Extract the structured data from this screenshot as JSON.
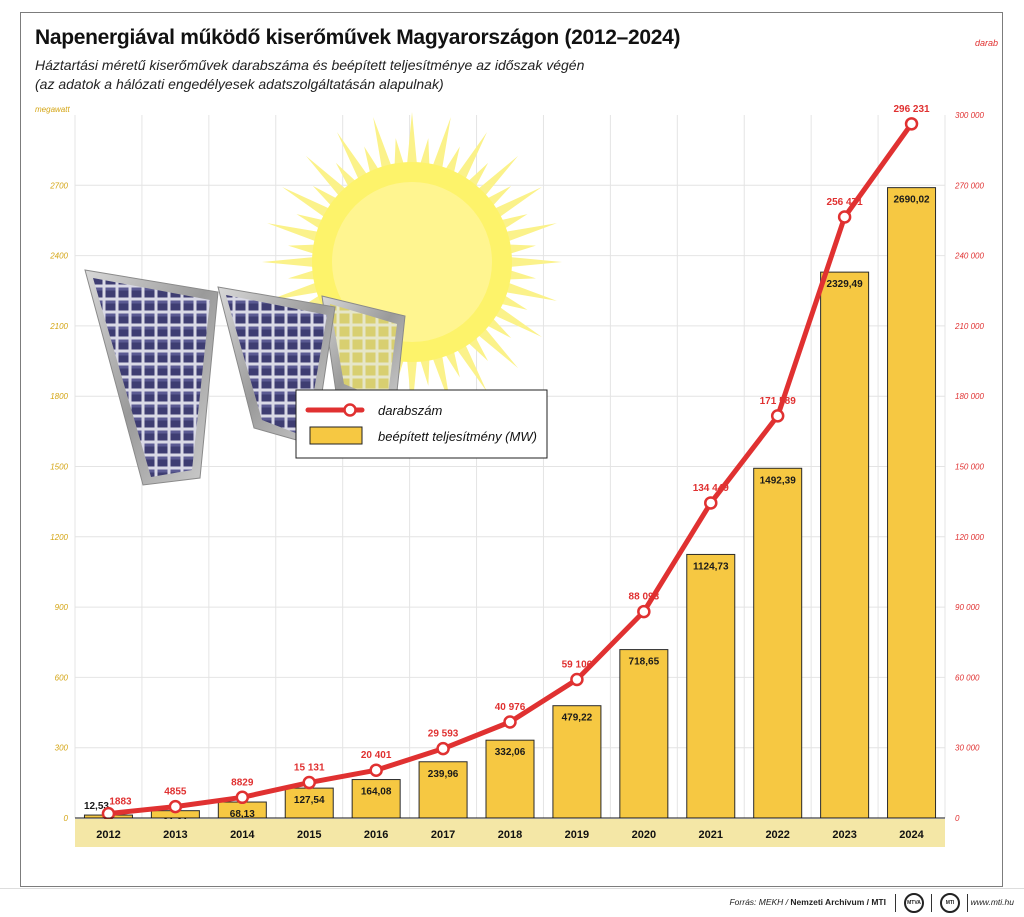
{
  "header": {
    "title": "Napenergiával működő kiserőművek Magyarországon (2012–2024)",
    "subtitle_line1": "Háztartási méretű kiserőművek darabszáma és beépített teljesítménye az időszak végén",
    "subtitle_line2": "(az adatok a hálózati engedélyesek adatszolgáltatásán alapulnak)"
  },
  "chart_data": {
    "type": "bar",
    "categories": [
      "2012",
      "2013",
      "2014",
      "2015",
      "2016",
      "2017",
      "2018",
      "2019",
      "2020",
      "2021",
      "2022",
      "2023",
      "2024"
    ],
    "left_axis": {
      "label": "megawatt",
      "ylim": [
        0,
        3000
      ],
      "ticks": [
        0,
        300,
        600,
        900,
        1200,
        1500,
        1800,
        2100,
        2400,
        2700
      ]
    },
    "right_axis": {
      "label": "darab",
      "ylim": [
        0,
        300000
      ],
      "ticks": [
        0,
        30000,
        60000,
        90000,
        120000,
        150000,
        180000,
        210000,
        240000,
        270000,
        300000
      ],
      "tick_labels": [
        "0",
        "30 000",
        "60 000",
        "90 000",
        "120 000",
        "150 000",
        "180 000",
        "210 000",
        "240 000",
        "270 000",
        "300 000"
      ]
    },
    "series": [
      {
        "name": "beépített teljesítmény (MW)",
        "kind": "bar",
        "axis": "left",
        "color": "#f6c842",
        "values": [
          12.53,
          31.21,
          68.13,
          127.54,
          164.08,
          239.96,
          332.06,
          479.22,
          718.65,
          1124.73,
          1492.39,
          2329.49,
          2690.02
        ],
        "labels": [
          "12,53",
          "31,21",
          "68,13",
          "127,54",
          "164,08",
          "239,96",
          "332,06",
          "479,22",
          "718,65",
          "1124,73",
          "1492,39",
          "2329,49",
          "2690,02"
        ]
      },
      {
        "name": "darabszám",
        "kind": "line",
        "axis": "right",
        "color": "#e03131",
        "values": [
          1883,
          4855,
          8829,
          15131,
          20401,
          29593,
          40976,
          59106,
          88093,
          134449,
          171589,
          256471,
          296231
        ],
        "labels": [
          "1883",
          "4855",
          "8829",
          "15 131",
          "20 401",
          "29 593",
          "40 976",
          "59 106",
          "88 093",
          "134 449",
          "171 589",
          "256 471",
          "296 231"
        ]
      }
    ],
    "legend": {
      "placement": "center-left"
    },
    "grid": true,
    "colors": {
      "bar": "#f6c842",
      "line": "#e03131",
      "left_axis_text": "#d4a514",
      "right_axis_text": "#e03131"
    }
  },
  "footer": {
    "source_prefix": "Forrás: MEKH / ",
    "source_bold": "Nemzeti Archívum / MTI",
    "logo1": "MTVA",
    "logo2": "MTI",
    "website": "www.mti.hu"
  }
}
